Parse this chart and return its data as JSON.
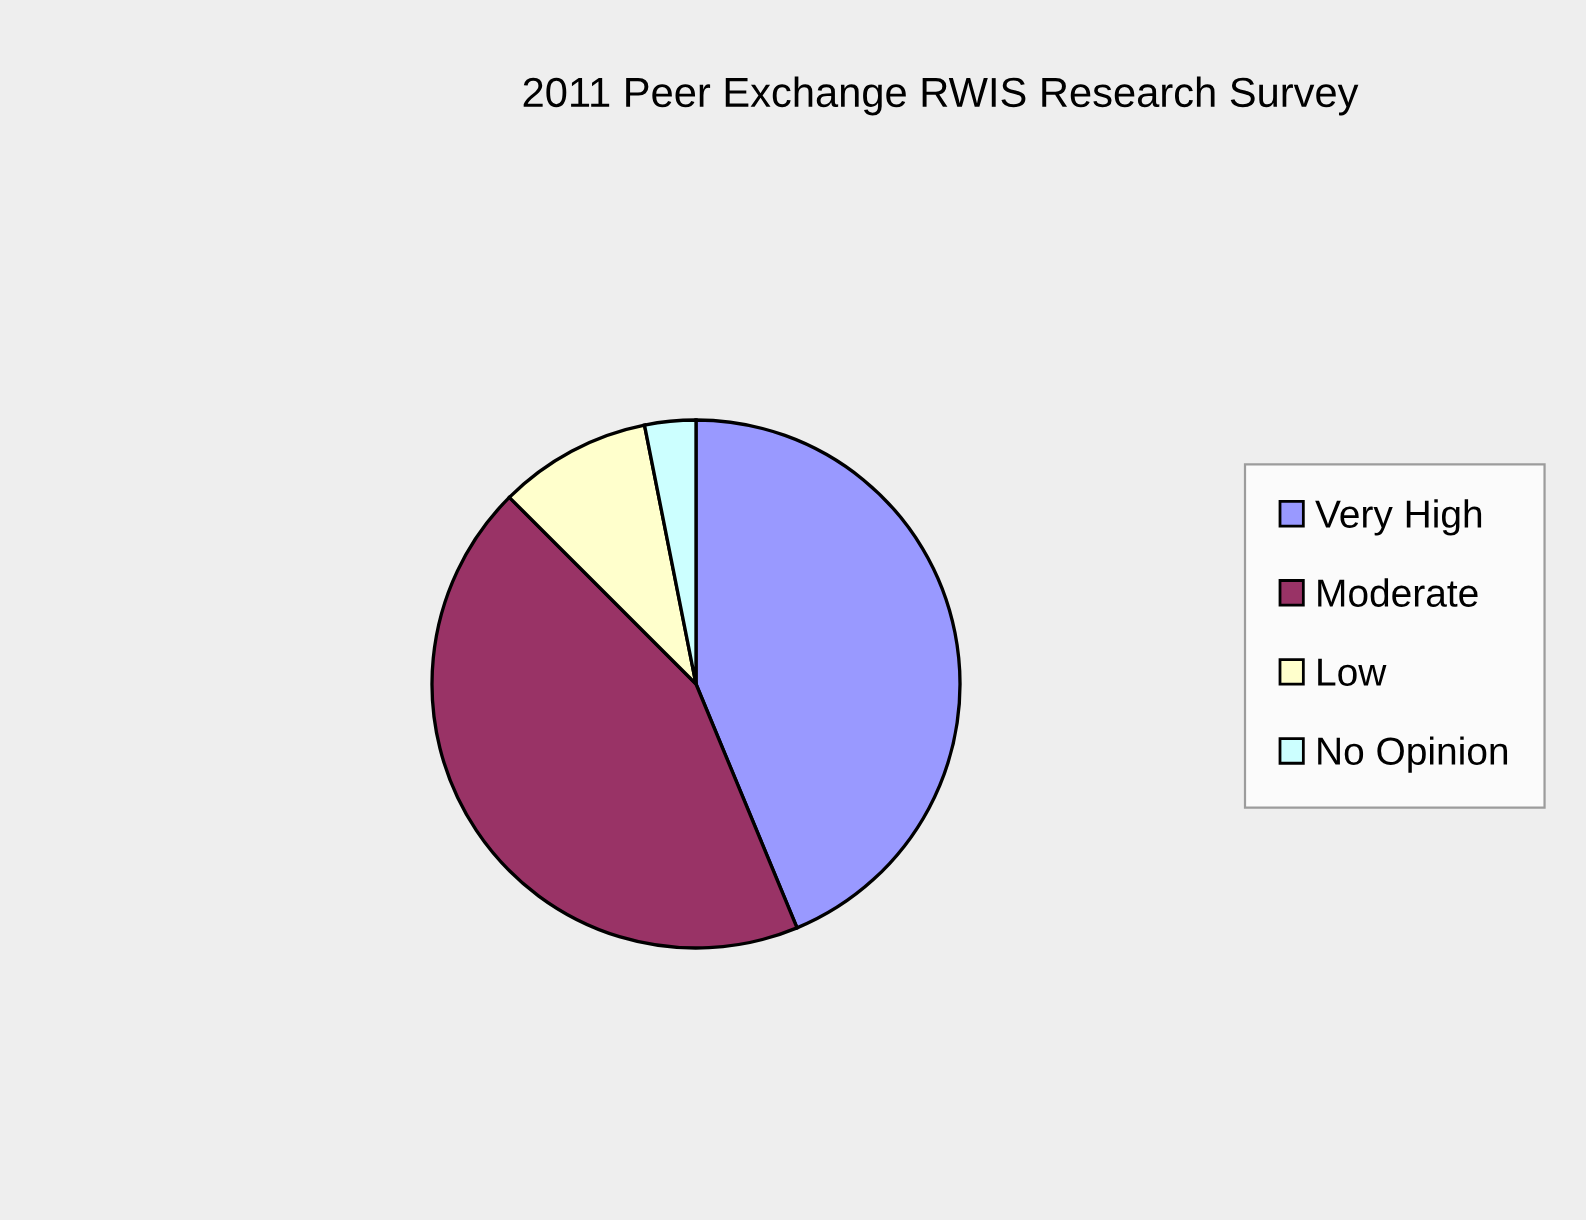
{
  "chart_data": {
    "type": "pie",
    "title": "2011 Peer Exchange RWIS Research Survey",
    "categories": [
      "Very High",
      "Moderate",
      "Low",
      "No Opinion"
    ],
    "values": [
      43.75,
      43.75,
      9.375,
      3.125
    ],
    "colors": [
      "#9999ff",
      "#993366",
      "#ffffcc",
      "#ccffff"
    ],
    "legend": "right"
  }
}
